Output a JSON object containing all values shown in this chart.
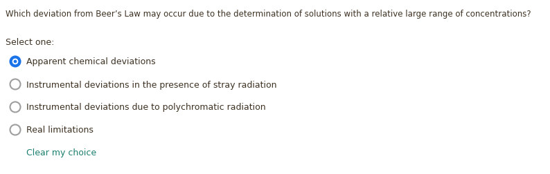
{
  "question": "Which deviation from Beer’s Law may occur due to the determination of solutions with a relative large range of concentrations?",
  "select_label": "Select one:",
  "options": [
    "Apparent chemical deviations",
    "Instrumental deviations in the presence of stray radiation",
    "Instrumental deviations due to polychromatic radiation",
    "Real limitations"
  ],
  "selected_index": 0,
  "clear_text": "Clear my choice",
  "bg_color": "#ffffff",
  "question_color": "#3d3223",
  "select_label_color": "#3d3223",
  "option_color": "#3d3223",
  "selected_radio_fill": "#1a73e8",
  "selected_radio_border": "#1a73e8",
  "unselected_radio_border": "#9e9e9e",
  "clear_color": "#1a7f6e",
  "question_fontsize": 8.5,
  "option_fontsize": 9.0,
  "label_fontsize": 9.0,
  "clear_fontsize": 9.0,
  "fig_width": 7.94,
  "fig_height": 2.53,
  "dpi": 100
}
